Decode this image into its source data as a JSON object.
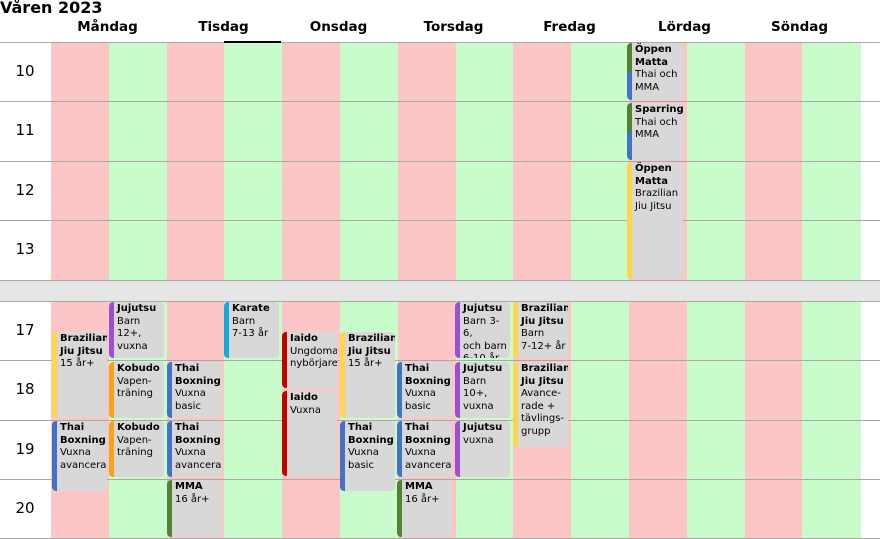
{
  "title": "Våren 2023",
  "days": [
    "Måndag",
    "Tisdag",
    "Onsdag",
    "Torsdag",
    "Fredag",
    "Lördag",
    "Söndag"
  ],
  "hours": [
    "10",
    "11",
    "12",
    "13",
    "17",
    "18",
    "19",
    "20"
  ],
  "colors": {
    "red_column": "#fdc6c6",
    "green_column": "#c8fcca",
    "card": "#d8d8d8",
    "bar_green": "#548235",
    "bar_blue": "#4472c4",
    "bar_yellow": "#ffd54f",
    "bar_purple": "#9b4fd1",
    "bar_orange": "#f5a31a",
    "bar_cyan": "#17a8e0",
    "bar_red": "#c00000"
  },
  "events": [
    {
      "id": "oppen-matta-thai",
      "title": "Öppen\nMatta",
      "sub": "Thai och\nMMA",
      "colors": [
        "bar_green",
        "bar_blue"
      ]
    },
    {
      "id": "sparring",
      "title": "Sparring",
      "sub": "Thai och\nMMA",
      "colors": [
        "bar_green",
        "bar_blue"
      ]
    },
    {
      "id": "oppen-matta-bjj",
      "title": "Öppen\nMatta",
      "sub": "Brazilian\nJiu Jitsu",
      "colors": [
        "bar_yellow"
      ]
    },
    {
      "id": "bjj-mon",
      "title": "Brazilian\nJiu Jitsu",
      "sub": "15 år+",
      "colors": [
        "bar_yellow"
      ]
    },
    {
      "id": "thai-mon",
      "title": "Thai\nBoxning",
      "sub": "Vuxna\navancerad",
      "colors": [
        "bar_blue"
      ]
    },
    {
      "id": "jujutsu-mon",
      "title": "Jujutsu",
      "sub": "Barn 12+,\nvuxna",
      "colors": [
        "bar_purple"
      ]
    },
    {
      "id": "kobudo-mon-18",
      "title": "Kobudo",
      "sub": "Vapen-\nträning",
      "colors": [
        "bar_orange"
      ]
    },
    {
      "id": "kobudo-mon-19",
      "title": "Kobudo",
      "sub": "Vapen-\nträning",
      "colors": [
        "bar_orange"
      ]
    },
    {
      "id": "thai-tue-18",
      "title": "Thai\nBoxning",
      "sub": "Vuxna\nbasic",
      "colors": [
        "bar_blue"
      ]
    },
    {
      "id": "thai-tue-19",
      "title": "Thai\nBoxning",
      "sub": "Vuxna\navancerad",
      "colors": [
        "bar_blue"
      ]
    },
    {
      "id": "mma-tue",
      "title": "MMA",
      "sub": "16 år+",
      "colors": [
        "bar_green"
      ]
    },
    {
      "id": "karate",
      "title": "Karate",
      "sub": "Barn\n7-13 år",
      "colors": [
        "bar_cyan"
      ]
    },
    {
      "id": "iaido-ung",
      "title": "Iaido",
      "sub": "Ungdomar\nnybörjare",
      "colors": [
        "bar_red"
      ]
    },
    {
      "id": "iaido-vux",
      "title": "Iaido",
      "sub": "Vuxna",
      "colors": [
        "bar_red"
      ]
    },
    {
      "id": "bjj-wed",
      "title": "Brazilian\nJiu Jitsu",
      "sub": "15 år+",
      "colors": [
        "bar_yellow"
      ]
    },
    {
      "id": "thai-wed",
      "title": "Thai\nBoxning",
      "sub": "Vuxna\nbasic",
      "colors": [
        "bar_blue"
      ]
    },
    {
      "id": "thai-thu-18",
      "title": "Thai\nBoxning",
      "sub": "Vuxna\nbasic",
      "colors": [
        "bar_blue"
      ]
    },
    {
      "id": "thai-thu-19",
      "title": "Thai\nBoxning",
      "sub": "Vuxna\navancerad",
      "colors": [
        "bar_blue"
      ]
    },
    {
      "id": "mma-thu",
      "title": "MMA",
      "sub": "16 år+",
      "colors": [
        "bar_green"
      ]
    },
    {
      "id": "jujutsu-thu-17",
      "title": "Jujutsu",
      "sub": "Barn 3-6,\noch barn\n6-10 år",
      "colors": [
        "bar_purple"
      ]
    },
    {
      "id": "jujutsu-thu-18",
      "title": "Jujutsu",
      "sub": "Barn 10+,\nvuxna",
      "colors": [
        "bar_purple"
      ]
    },
    {
      "id": "jujutsu-thu-19",
      "title": "Jujutsu",
      "sub": "vuxna",
      "colors": [
        "bar_purple"
      ]
    },
    {
      "id": "bjj-fri-barn",
      "title": "Brazilian\nJiu Jitsu",
      "sub": "Barn\n7-12+ år",
      "colors": [
        "bar_yellow"
      ]
    },
    {
      "id": "bjj-fri-adv",
      "title": "Brazilian\nJiu Jitsu",
      "sub": "Avance-\nrade +\ntävlings-\ngrupp",
      "colors": [
        "bar_yellow"
      ]
    }
  ]
}
